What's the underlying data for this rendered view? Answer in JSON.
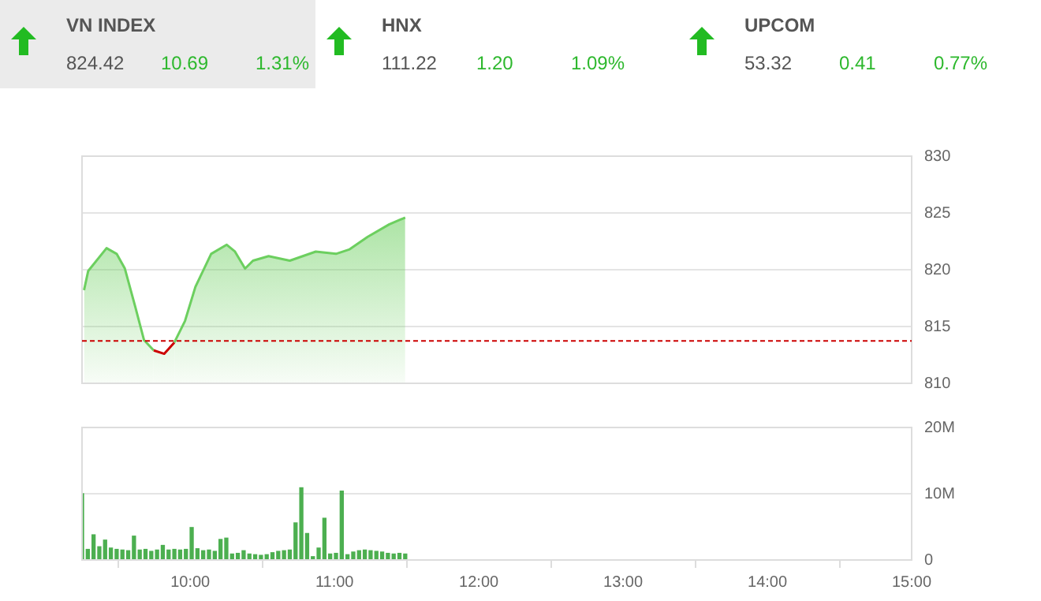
{
  "chart_data": [
    {
      "type": "other",
      "annotations": [
        "VN INDEX",
        "824.42",
        "10.69",
        "1.31%",
        "HNX",
        "111.22",
        "1.20",
        "1.09%",
        "UPCOM",
        "53.32",
        "0.41",
        "0.77%"
      ]
    },
    {
      "type": "area",
      "xlim": [
        9.25,
        15
      ],
      "ylim": [
        810,
        830
      ],
      "yticks": [
        810,
        815,
        820,
        825,
        830
      ],
      "grid": "y",
      "tick_labels": "y",
      "series": [
        {
          "color": "#6ccf5f",
          "x": [
            9.264,
            9.293,
            9.42,
            9.49,
            9.547,
            9.62,
            9.68,
            9.747,
            9.82,
            9.89,
            9.964,
            10.036,
            10.145,
            10.253,
            10.31,
            10.38,
            10.435,
            10.543,
            10.69,
            10.87,
            11.01,
            11.105,
            11.23,
            11.38,
            11.49
          ],
          "values": [
            818.2,
            819.9,
            821.9,
            821.4,
            820.1,
            816.7,
            813.8,
            812.9,
            812.6,
            813.6,
            815.5,
            818.5,
            821.4,
            822.2,
            821.6,
            820.1,
            820.8,
            821.2,
            820.8,
            821.6,
            821.4,
            821.8,
            822.9,
            824.0,
            824.6
          ]
        }
      ],
      "ref_lines": [
        {
          "axis": "y",
          "value": 813.73,
          "color": "#cc0000",
          "line_style": "dashed"
        }
      ]
    },
    {
      "type": "bar",
      "xlim": [
        9.25,
        15
      ],
      "xticks": [
        {
          "value": 10,
          "label": "10:00"
        },
        {
          "value": 11,
          "label": "11:00"
        },
        {
          "value": 12,
          "label": "12:00"
        },
        {
          "value": 13,
          "label": "13:00"
        },
        {
          "value": 14,
          "label": "14:00"
        },
        {
          "value": 15,
          "label": "15:00"
        }
      ],
      "ylim": [
        0,
        20
      ],
      "yticks": [
        0,
        {
          "value": 10,
          "label": "10M"
        },
        {
          "value": 20,
          "label": "20M"
        }
      ],
      "grid": "y",
      "series": [
        {
          "color": "#4caf50",
          "x": [
            9.25,
            9.29,
            9.33,
            9.37,
            9.41,
            9.45,
            9.49,
            9.53,
            9.57,
            9.61,
            9.65,
            9.69,
            9.73,
            9.77,
            9.81,
            9.85,
            9.89,
            9.93,
            9.97,
            10.01,
            10.05,
            10.09,
            10.13,
            10.17,
            10.21,
            10.25,
            10.29,
            10.33,
            10.37,
            10.41,
            10.45,
            10.49,
            10.53,
            10.57,
            10.61,
            10.65,
            10.69,
            10.73,
            10.77,
            10.81,
            10.85,
            10.89,
            10.93,
            10.97,
            11.01,
            11.05,
            11.09,
            11.13,
            11.17,
            11.21,
            11.25,
            11.29,
            11.33,
            11.37,
            11.41,
            11.45,
            11.49
          ],
          "values": [
            10,
            1.6,
            3.8,
            2.0,
            3.0,
            1.8,
            1.6,
            1.5,
            1.4,
            3.6,
            1.5,
            1.6,
            1.3,
            1.5,
            2.2,
            1.5,
            1.6,
            1.5,
            1.6,
            4.9,
            1.7,
            1.4,
            1.5,
            1.3,
            3.1,
            3.3,
            0.9,
            1.0,
            1.4,
            0.9,
            0.8,
            0.7,
            0.8,
            1.1,
            1.3,
            1.4,
            1.5,
            5.6,
            10.9,
            4.0,
            0.5,
            1.8,
            6.3,
            0.9,
            1.0,
            10.4,
            0.8,
            1.2,
            1.4,
            1.5,
            1.4,
            1.3,
            1.2,
            1.0,
            0.9,
            1.0,
            0.9
          ]
        }
      ]
    }
  ]
}
